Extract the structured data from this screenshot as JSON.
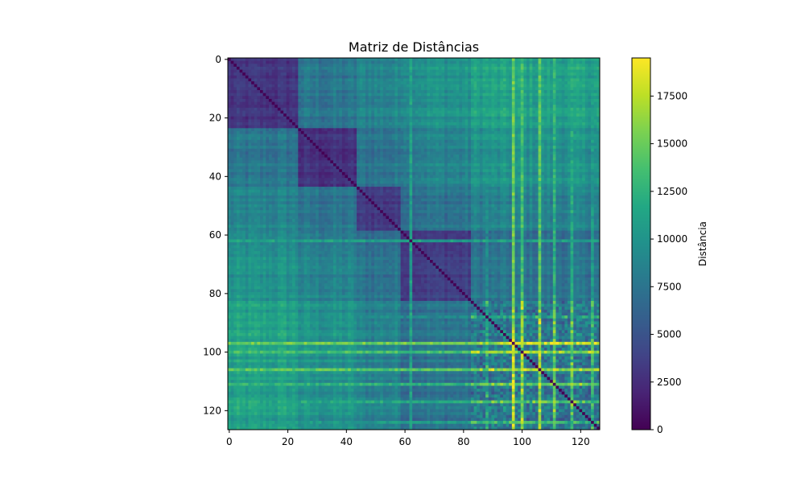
{
  "chart_data": {
    "type": "heatmap",
    "title": "Matriz de Distâncias",
    "n": 127,
    "x_ticks": [
      0,
      20,
      40,
      60,
      80,
      100,
      120
    ],
    "y_ticks": [
      0,
      20,
      40,
      60,
      80,
      100,
      120
    ],
    "x_tick_labels": [
      "0",
      "20",
      "40",
      "60",
      "80",
      "100",
      "120"
    ],
    "y_tick_labels": [
      "0",
      "20",
      "40",
      "60",
      "80",
      "100",
      "120"
    ],
    "colorbar": {
      "label": "Distância",
      "range": [
        0,
        19500
      ],
      "ticks": [
        0,
        2500,
        5000,
        7500,
        10000,
        12500,
        15000,
        17500
      ],
      "tick_labels": [
        "0",
        "2500",
        "5000",
        "7500",
        "10000",
        "12500",
        "15000",
        "17500"
      ],
      "colormap": "viridis"
    },
    "clusters": [
      {
        "range": [
          0,
          23
        ],
        "level": 0.1
      },
      {
        "range": [
          24,
          43
        ],
        "level": 0.08
      },
      {
        "range": [
          44,
          58
        ],
        "level": 0.14
      },
      {
        "range": [
          59,
          82
        ],
        "level": 0.16
      },
      {
        "range": [
          83,
          126
        ],
        "level": 0.3
      }
    ],
    "outlier_rows": [
      {
        "index": 62,
        "level": 0.58
      },
      {
        "index": 88,
        "level": 0.48
      },
      {
        "index": 97,
        "level": 0.8
      },
      {
        "index": 100,
        "level": 0.72
      },
      {
        "index": 106,
        "level": 0.76
      },
      {
        "index": 111,
        "level": 0.66
      },
      {
        "index": 117,
        "level": 0.62
      },
      {
        "index": 124,
        "level": 0.56
      }
    ]
  }
}
